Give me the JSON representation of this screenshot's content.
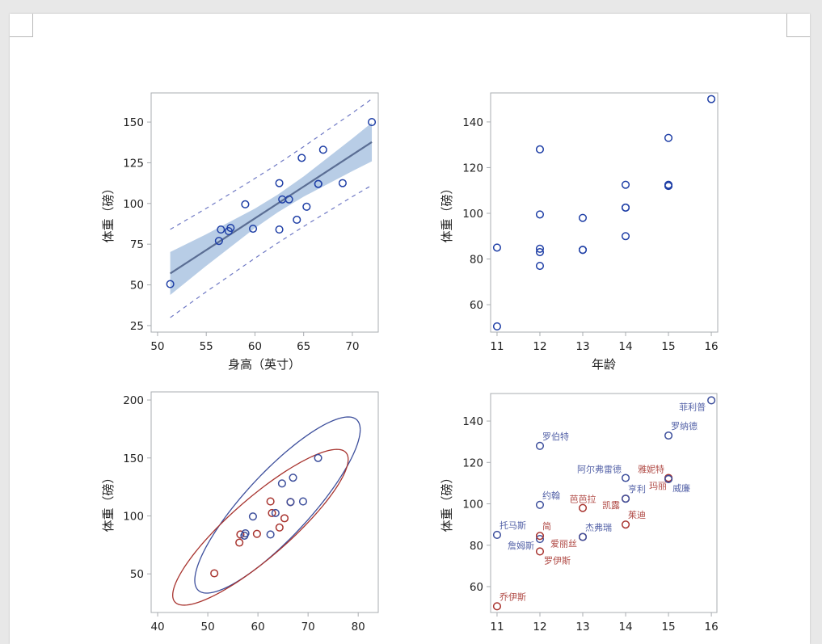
{
  "colors": {
    "marker": "#1f3fa6",
    "fit_line": "#5b6e94",
    "confidence_band": "#b8cde6",
    "prediction_line": "#6e78c4",
    "male": "#3d4f9c",
    "female": "#a8342f",
    "male_label": "#5563a8",
    "female_label": "#b04a45",
    "frame": "#a8acb0"
  },
  "chart_data": [
    {
      "type": "scatter",
      "subtype": "regression-fit",
      "xlabel": "身高（英寸）",
      "ylabel": "体重（磅）",
      "xlim": [
        49.34,
        72.66
      ],
      "ylim": [
        21.0,
        167.9
      ],
      "xticks": [
        50,
        55,
        60,
        65,
        70
      ],
      "yticks": [
        25,
        50,
        75,
        100,
        125,
        150
      ],
      "points": [
        [
          69.0,
          112.5
        ],
        [
          56.5,
          84.0
        ],
        [
          65.3,
          98.0
        ],
        [
          62.8,
          102.5
        ],
        [
          63.5,
          102.5
        ],
        [
          57.3,
          83.0
        ],
        [
          59.8,
          84.5
        ],
        [
          62.5,
          112.5
        ],
        [
          62.5,
          84.0
        ],
        [
          59.0,
          99.5
        ],
        [
          51.3,
          50.5
        ],
        [
          64.3,
          90.0
        ],
        [
          56.3,
          77.0
        ],
        [
          66.5,
          112.0
        ],
        [
          72.0,
          150.0
        ],
        [
          64.8,
          128.0
        ],
        [
          67.0,
          133.0
        ],
        [
          57.5,
          85.0
        ],
        [
          66.5,
          112.0
        ]
      ],
      "fit": {
        "x": [
          51.3,
          55,
          60,
          62.34,
          65,
          70,
          72
        ],
        "y": [
          57.0,
          71.4,
          90.9,
          100.0,
          110.4,
          129.9,
          137.7
        ]
      },
      "confidence_band": {
        "lower": [
          43.8,
          61.7,
          84.9,
          94.6,
          104.2,
          119.9,
          125.9
        ],
        "upper": [
          70.2,
          81.1,
          96.9,
          105.4,
          116.6,
          139.9,
          149.6
        ]
      },
      "prediction_limits": {
        "lower": [
          29.9,
          45.8,
          66.4,
          75.7,
          85.9,
          104.2,
          111.2
        ],
        "upper": [
          84.1,
          97.0,
          115.4,
          124.3,
          134.9,
          155.6,
          164.2
        ]
      },
      "grid": false
    },
    {
      "type": "scatter",
      "xlabel": "年龄",
      "ylabel": "体重（磅）",
      "xlim": [
        10.85,
        16.15
      ],
      "ylim": [
        48.0,
        152.7
      ],
      "xticks": [
        11,
        12,
        13,
        14,
        15,
        16
      ],
      "yticks": [
        60,
        80,
        100,
        120,
        140
      ],
      "points": [
        [
          14,
          112.5
        ],
        [
          13,
          84.0
        ],
        [
          13,
          98.0
        ],
        [
          14,
          102.5
        ],
        [
          14,
          102.5
        ],
        [
          12,
          83.0
        ],
        [
          12,
          84.5
        ],
        [
          15,
          112.5
        ],
        [
          13,
          84.0
        ],
        [
          12,
          99.5
        ],
        [
          11,
          50.5
        ],
        [
          14,
          90.0
        ],
        [
          12,
          77.0
        ],
        [
          15,
          112.0
        ],
        [
          16,
          150.0
        ],
        [
          12,
          128.0
        ],
        [
          15,
          133.0
        ],
        [
          11,
          85.0
        ],
        [
          15,
          112.0
        ]
      ],
      "grid": false
    },
    {
      "type": "scatter",
      "subtype": "prediction-ellipse-by-group",
      "xlabel": "",
      "ylabel": "体重（磅）",
      "xlim": [
        38.7,
        84.0
      ],
      "ylim": [
        16.7,
        207.0
      ],
      "xticks": [
        40,
        50,
        60,
        70,
        80
      ],
      "yticks": [
        50,
        100,
        150,
        200
      ],
      "points": [
        {
          "x": 69.0,
          "y": 112.5,
          "group": "M"
        },
        {
          "x": 56.5,
          "y": 84.0,
          "group": "F"
        },
        {
          "x": 65.3,
          "y": 98.0,
          "group": "F"
        },
        {
          "x": 62.8,
          "y": 102.5,
          "group": "F"
        },
        {
          "x": 63.5,
          "y": 102.5,
          "group": "M"
        },
        {
          "x": 57.3,
          "y": 83.0,
          "group": "M"
        },
        {
          "x": 59.8,
          "y": 84.5,
          "group": "F"
        },
        {
          "x": 62.5,
          "y": 112.5,
          "group": "F"
        },
        {
          "x": 62.5,
          "y": 84.0,
          "group": "M"
        },
        {
          "x": 59.0,
          "y": 99.5,
          "group": "M"
        },
        {
          "x": 51.3,
          "y": 50.5,
          "group": "F"
        },
        {
          "x": 64.3,
          "y": 90.0,
          "group": "F"
        },
        {
          "x": 56.3,
          "y": 77.0,
          "group": "F"
        },
        {
          "x": 66.5,
          "y": 112.0,
          "group": "F"
        },
        {
          "x": 72.0,
          "y": 150.0,
          "group": "M"
        },
        {
          "x": 64.8,
          "y": 128.0,
          "group": "M"
        },
        {
          "x": 67.0,
          "y": 133.0,
          "group": "M"
        },
        {
          "x": 57.5,
          "y": 85.0,
          "group": "M"
        },
        {
          "x": 66.5,
          "y": 112.0,
          "group": "M"
        }
      ],
      "ellipses": [
        {
          "group": "M",
          "center": [
            63.9,
            109.4
          ],
          "x_extent": 16.5,
          "y_extent": 76.0,
          "correlation": 0.855
        },
        {
          "group": "F",
          "center": [
            60.5,
            90.2
          ],
          "x_extent": 17.5,
          "y_extent": 67.2,
          "correlation": 0.872
        }
      ],
      "grid": false
    },
    {
      "type": "scatter",
      "subtype": "labeled",
      "xlabel": "",
      "ylabel": "体重（磅）",
      "xlim": [
        10.85,
        16.13
      ],
      "ylim": [
        47.5,
        153.3
      ],
      "xticks": [
        11,
        12,
        13,
        14,
        15,
        16
      ],
      "yticks": [
        60,
        80,
        100,
        120,
        140
      ],
      "points": [
        {
          "x": 14,
          "y": 112.5,
          "group": "M",
          "label": "阿尔弗雷德",
          "pos": "nw"
        },
        {
          "x": 13,
          "y": 84.0,
          "group": "F",
          "label": "爱丽丝",
          "pos": "sw"
        },
        {
          "x": 13,
          "y": 98.0,
          "group": "F",
          "label": "芭芭拉",
          "pos": "n"
        },
        {
          "x": 14,
          "y": 102.5,
          "group": "F",
          "label": "凯露",
          "pos": "sw"
        },
        {
          "x": 14,
          "y": 102.5,
          "group": "M",
          "label": "亨利",
          "pos": "ne"
        },
        {
          "x": 12,
          "y": 83.0,
          "group": "M",
          "label": "詹姆斯",
          "pos": "sw"
        },
        {
          "x": 12,
          "y": 84.5,
          "group": "F",
          "label": "简",
          "pos": "ne"
        },
        {
          "x": 15,
          "y": 112.5,
          "group": "F",
          "label": "雅妮特",
          "pos": "nw"
        },
        {
          "x": 13,
          "y": 84.0,
          "group": "M",
          "label": "杰弗瑞",
          "pos": "ne"
        },
        {
          "x": 12,
          "y": 99.5,
          "group": "M",
          "label": "约翰",
          "pos": "ne"
        },
        {
          "x": 11,
          "y": 50.5,
          "group": "F",
          "label": "乔伊斯",
          "pos": "ne"
        },
        {
          "x": 14,
          "y": 90.0,
          "group": "F",
          "label": "茱迪",
          "pos": "ne"
        },
        {
          "x": 12,
          "y": 77.0,
          "group": "F",
          "label": "罗伊斯",
          "pos": "se"
        },
        {
          "x": 15,
          "y": 112.0,
          "group": "F",
          "label": "玛丽",
          "pos": "w"
        },
        {
          "x": 16,
          "y": 150.0,
          "group": "M",
          "label": "菲利普",
          "pos": "sw"
        },
        {
          "x": 12,
          "y": 128.0,
          "group": "M",
          "label": "罗伯特",
          "pos": "ne"
        },
        {
          "x": 15,
          "y": 133.0,
          "group": "M",
          "label": "罗纳德",
          "pos": "ne"
        },
        {
          "x": 11,
          "y": 85.0,
          "group": "M",
          "label": "托马斯",
          "pos": "ne"
        },
        {
          "x": 15,
          "y": 112.0,
          "group": "M",
          "label": "威廉",
          "pos": "se"
        }
      ],
      "grid": false
    }
  ]
}
